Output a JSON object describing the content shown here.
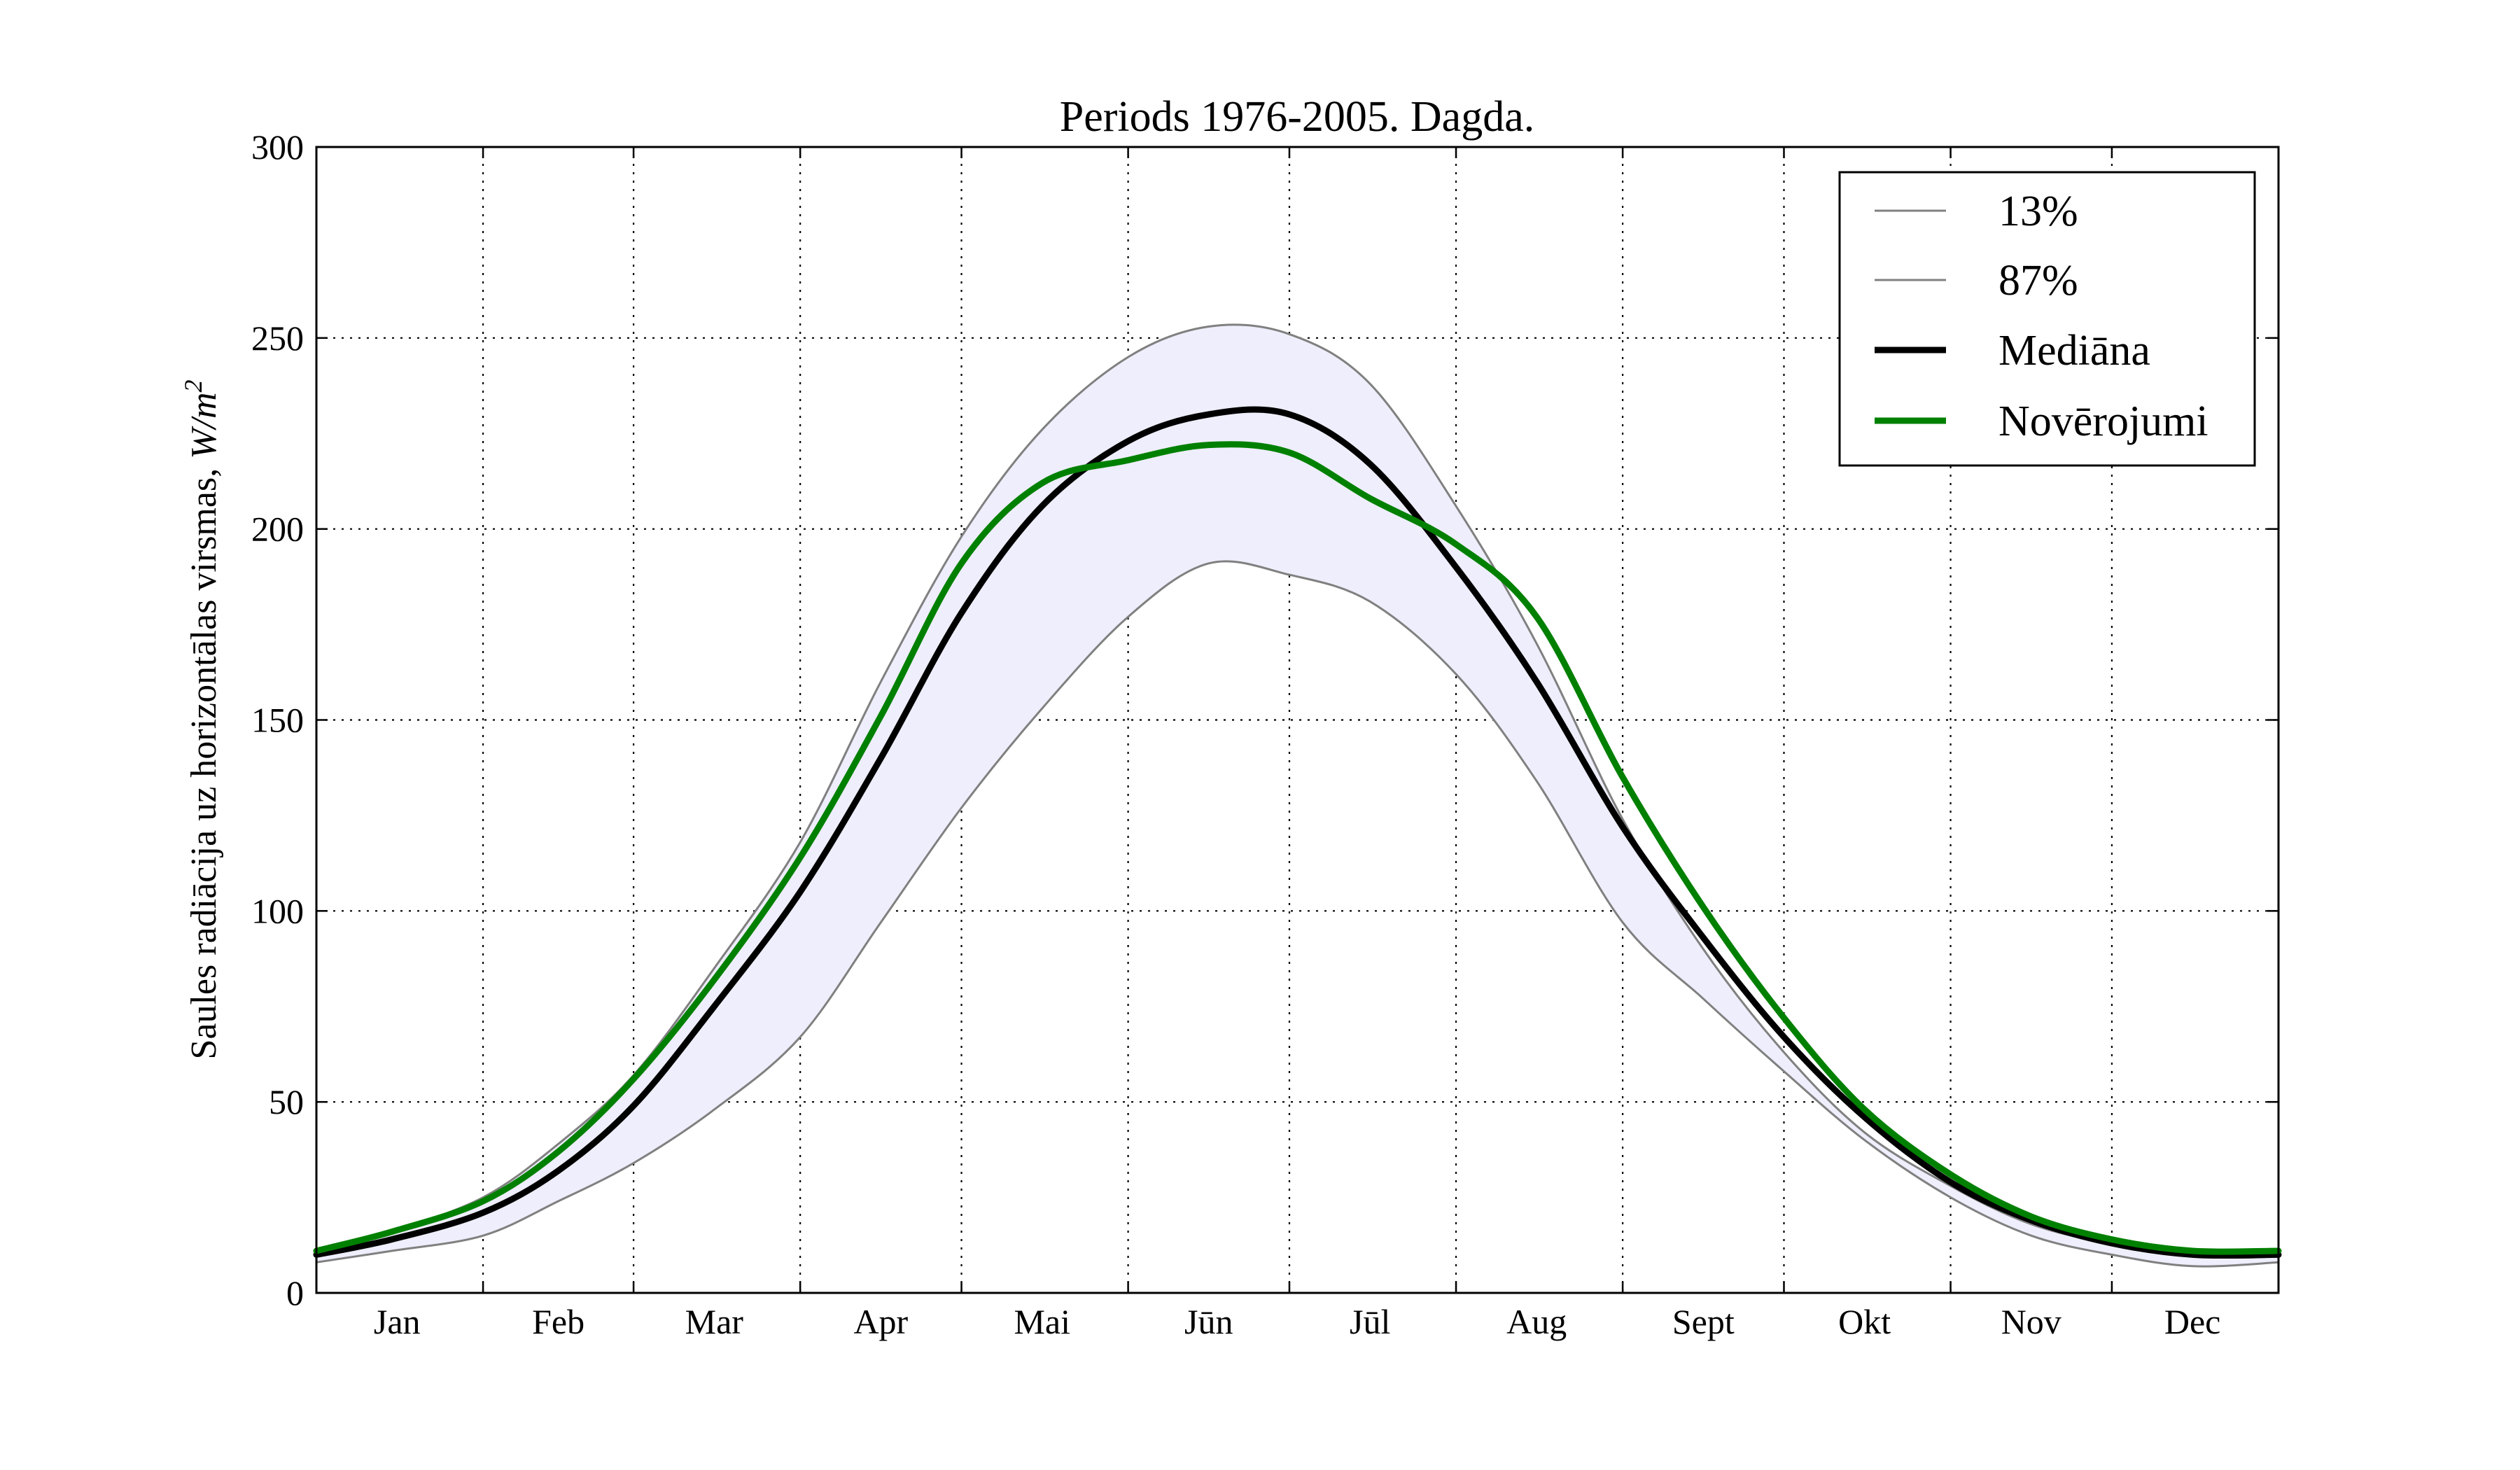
{
  "chart_data": {
    "type": "line",
    "title": "Periods 1976-2005. Dagda.",
    "xlabel": "",
    "ylabel": "Saules radiācija uz horizontālas virsmas, ",
    "ylabel_unit": "W/m",
    "ylabel_unit_exp": "2",
    "categories": [
      "Jan",
      "Feb",
      "Mar",
      "Apr",
      "Mai",
      "Jūn",
      "Jūl",
      "Aug",
      "Sept",
      "Okt",
      "Nov",
      "Dec"
    ],
    "x_note": "x values are day of year",
    "month_boundaries": [
      1,
      32,
      60,
      91,
      121,
      152,
      182,
      213,
      244,
      274,
      305,
      335,
      366
    ],
    "month_label_days": [
      16,
      46,
      75,
      106,
      136,
      167,
      197,
      228,
      259,
      289,
      320,
      350
    ],
    "xlim": [
      1,
      366
    ],
    "ylim": [
      0,
      300
    ],
    "yticks": [
      0,
      50,
      100,
      150,
      200,
      250,
      300
    ],
    "grid": true,
    "legend_position": "top-right",
    "band_fill_color": "#eeeefc",
    "x": [
      1,
      15,
      32,
      46,
      60,
      75,
      91,
      106,
      121,
      136,
      152,
      167,
      182,
      197,
      213,
      228,
      244,
      259,
      274,
      289,
      305,
      320,
      335,
      350,
      366
    ],
    "series": [
      {
        "name": "13%",
        "color": "#808080",
        "values": [
          8,
          11,
          15,
          24,
          34,
          48,
          67,
          97,
          127,
          153,
          177,
          191,
          188,
          181,
          162,
          134,
          97,
          77,
          58,
          40,
          25,
          15,
          10,
          7,
          8
        ]
      },
      {
        "name": "87%",
        "color": "#808080",
        "values": [
          10,
          16,
          25,
          39,
          57,
          85,
          118,
          160,
          198,
          226,
          245,
          253,
          251,
          238,
          206,
          170,
          124,
          90,
          63,
          42,
          28,
          18,
          13,
          11,
          11
        ]
      },
      {
        "name": "Mediāna",
        "color": "#000000",
        "values": [
          10,
          14,
          21,
          32,
          49,
          75,
          105,
          140,
          178,
          206,
          223,
          230,
          230,
          217,
          190,
          160,
          122,
          93,
          67,
          46,
          29,
          19,
          13,
          10,
          10
        ]
      },
      {
        "name": "Novērojumi",
        "color": "#008000",
        "values": [
          11,
          16,
          24,
          37,
          56,
          82,
          114,
          151,
          191,
          212,
          218,
          222,
          220,
          208,
          196,
          177,
          135,
          101,
          72,
          48,
          31,
          20,
          14,
          11,
          11
        ]
      }
    ]
  }
}
